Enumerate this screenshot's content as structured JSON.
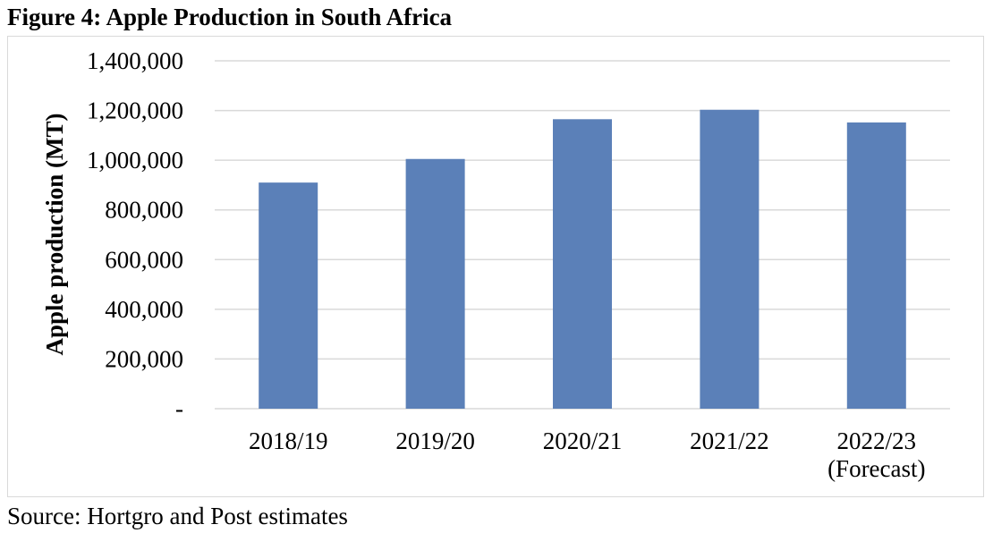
{
  "figure_title": "Figure 4: Apple Production in South Africa",
  "source": "Source: Hortgro and Post estimates",
  "chart_data": {
    "type": "bar",
    "title": "",
    "ylabel": "Apple production (MT)",
    "xlabel": "",
    "categories": [
      "2018/19",
      "2019/20",
      "2020/21",
      "2021/22",
      "2022/23 (Forecast)"
    ],
    "category_lines": [
      [
        "2018/19"
      ],
      [
        "2019/20"
      ],
      [
        "2020/21"
      ],
      [
        "2021/22"
      ],
      [
        "2022/23",
        "(Forecast)"
      ]
    ],
    "values": [
      910000,
      1005000,
      1165000,
      1203000,
      1152000
    ],
    "ylim": [
      0,
      1400000
    ],
    "yticks": [
      0,
      200000,
      400000,
      600000,
      800000,
      1000000,
      1200000,
      1400000
    ],
    "ytick_labels": [
      "-",
      "200,000",
      "400,000",
      "600,000",
      "800,000",
      "1,000,000",
      "1,200,000",
      "1,400,000"
    ],
    "grid": true,
    "legend": "none",
    "bar_color": "#5b80b8",
    "grid_color": "#d9d9d9"
  }
}
